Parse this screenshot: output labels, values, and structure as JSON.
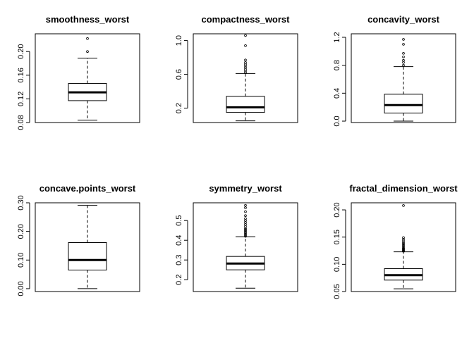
{
  "chart_data": [
    {
      "type": "box",
      "title": "smoothness_worst",
      "ylim": [
        0.08,
        0.23
      ],
      "yticks": [
        0.08,
        0.12,
        0.16,
        0.2
      ],
      "tick_labels": [
        "0.08",
        "0.12",
        "0.16",
        "0.20"
      ],
      "box": {
        "whisker_low": 0.084,
        "q1": 0.117,
        "median": 0.131,
        "q3": 0.146,
        "whisker_high": 0.189
      },
      "outliers": [
        0.2,
        0.222
      ]
    },
    {
      "type": "box",
      "title": "compactness_worst",
      "ylim": [
        0.03,
        1.08
      ],
      "yticks": [
        0.2,
        0.6,
        1.0
      ],
      "tick_labels": [
        "0.2",
        "0.6",
        "1.0"
      ],
      "box": {
        "whisker_low": 0.05,
        "q1": 0.15,
        "median": 0.21,
        "q3": 0.34,
        "whisker_high": 0.61
      },
      "outliers": [
        0.62,
        0.64,
        0.66,
        0.68,
        0.7,
        0.72,
        0.74,
        0.77,
        0.94,
        1.06
      ]
    },
    {
      "type": "box",
      "title": "concavity_worst",
      "ylim": [
        -0.02,
        1.25
      ],
      "yticks": [
        0.0,
        0.4,
        0.8,
        1.2
      ],
      "tick_labels": [
        "0.0",
        "0.4",
        "0.8",
        "1.2"
      ],
      "box": {
        "whisker_low": 0.0,
        "q1": 0.115,
        "median": 0.23,
        "q3": 0.385,
        "whisker_high": 0.78
      },
      "outliers": [
        0.8,
        0.84,
        0.87,
        0.92,
        0.97,
        1.1,
        1.17
      ]
    },
    {
      "type": "box",
      "title": "concave.points_worst",
      "ylim": [
        -0.01,
        0.3
      ],
      "yticks": [
        0.0,
        0.1,
        0.2,
        0.3
      ],
      "tick_labels": [
        "0.00",
        "0.10",
        "0.20",
        "0.30"
      ],
      "box": {
        "whisker_low": 0.0,
        "q1": 0.065,
        "median": 0.1,
        "q3": 0.161,
        "whisker_high": 0.291
      },
      "outliers": []
    },
    {
      "type": "box",
      "title": "symmetry_worst",
      "ylim": [
        0.14,
        0.59
      ],
      "yticks": [
        0.2,
        0.3,
        0.4,
        0.5
      ],
      "tick_labels": [
        "0.2",
        "0.3",
        "0.4",
        "0.5"
      ],
      "box": {
        "whisker_low": 0.157,
        "q1": 0.25,
        "median": 0.282,
        "q3": 0.318,
        "whisker_high": 0.418
      },
      "outliers": [
        0.42,
        0.425,
        0.43,
        0.435,
        0.44,
        0.445,
        0.45,
        0.455,
        0.46,
        0.47,
        0.48,
        0.49,
        0.5,
        0.51,
        0.525,
        0.545,
        0.565,
        0.577
      ]
    },
    {
      "type": "box",
      "title": "fractal_dimension_worst",
      "ylim": [
        0.05,
        0.213
      ],
      "yticks": [
        0.05,
        0.1,
        0.15,
        0.2
      ],
      "tick_labels": [
        "0.05",
        "0.10",
        "0.15",
        "0.20"
      ],
      "box": {
        "whisker_low": 0.055,
        "q1": 0.071,
        "median": 0.08,
        "q3": 0.092,
        "whisker_high": 0.123
      },
      "outliers": [
        0.124,
        0.125,
        0.126,
        0.127,
        0.128,
        0.129,
        0.13,
        0.132,
        0.134,
        0.136,
        0.138,
        0.14,
        0.143,
        0.146,
        0.149,
        0.208
      ]
    }
  ]
}
